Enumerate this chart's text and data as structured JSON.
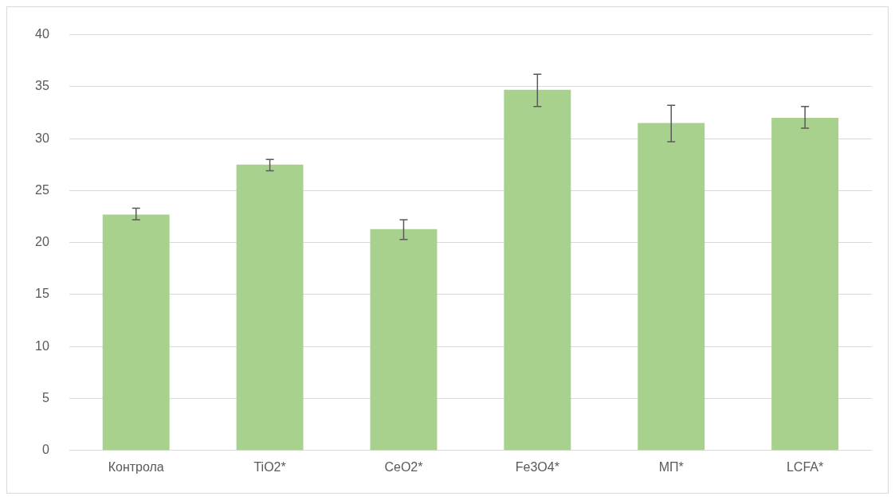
{
  "chart_data": {
    "type": "bar",
    "categories": [
      "Контрола",
      "TiO2*",
      "CeO2*",
      "Fe3O4*",
      "МП*",
      "LCFA*"
    ],
    "values": [
      22.7,
      27.5,
      21.3,
      34.7,
      31.5,
      32.0
    ],
    "color": "#a9d18e",
    "errors": [
      [
        22.2,
        23.3
      ],
      [
        26.9,
        28.0
      ],
      [
        20.3,
        22.2
      ],
      [
        33.1,
        36.2
      ],
      [
        29.7,
        33.2
      ],
      [
        31.0,
        33.1
      ]
    ],
    "ylim": [
      0,
      40
    ],
    "yticks": [
      0,
      5,
      10,
      15,
      20,
      25,
      30,
      35,
      40
    ],
    "grid": "y",
    "legend": false
  }
}
